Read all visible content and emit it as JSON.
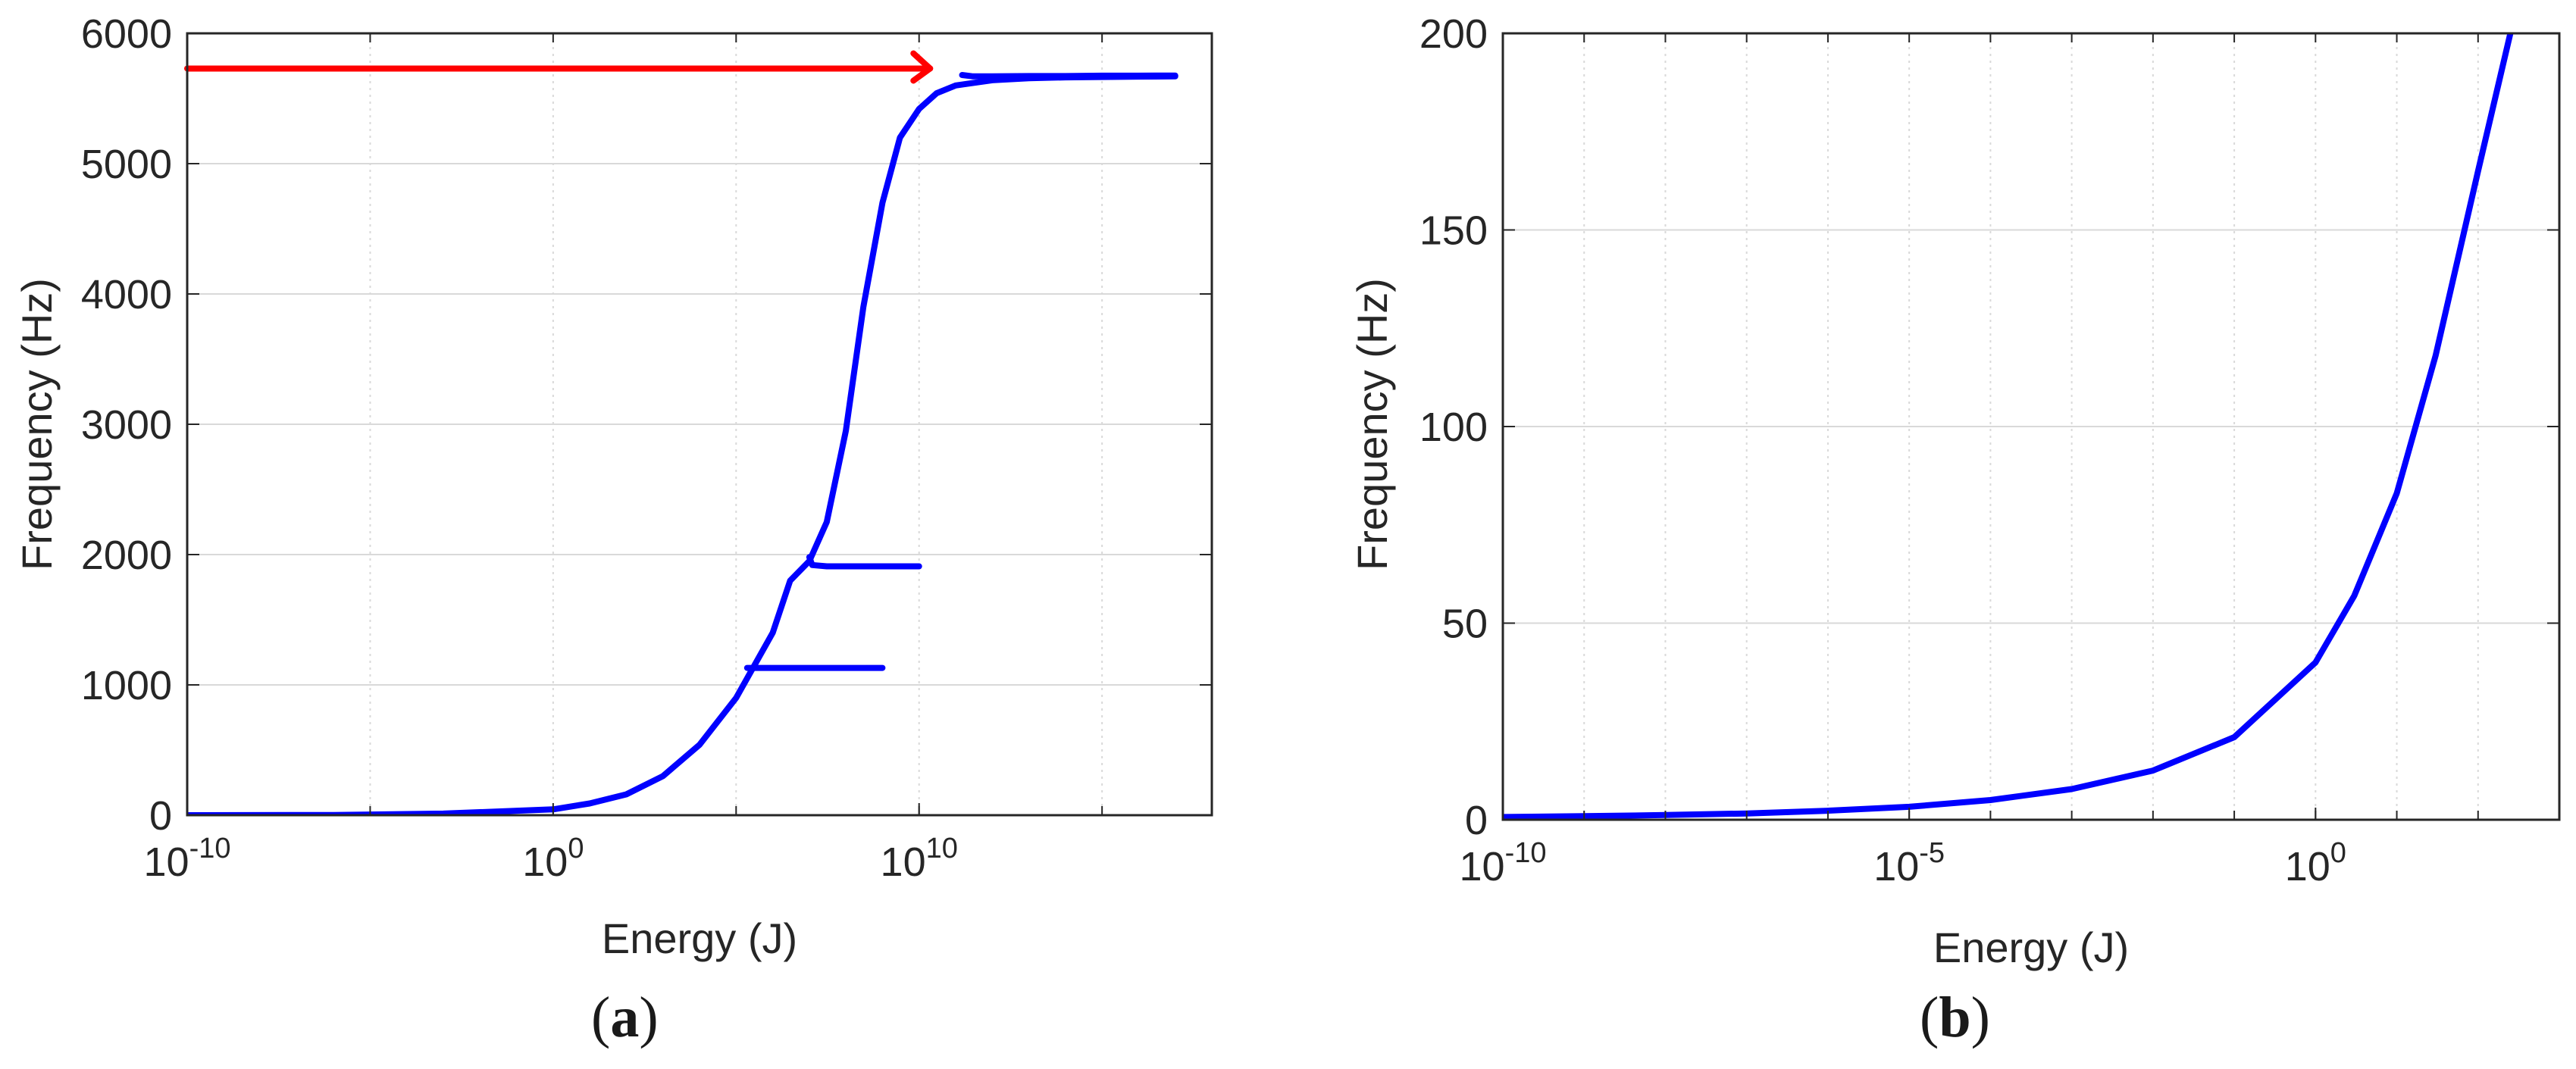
{
  "colors": {
    "curve": "#0000ff",
    "arrow": "#ff0000",
    "grid": "#d9d9d9",
    "axis": "#262626"
  },
  "captions": {
    "a": "a",
    "b": "b"
  },
  "chart_data": [
    {
      "type": "line",
      "panel": "a",
      "xlabel": "Energy (J)",
      "ylabel": "Frequency (Hz)",
      "x_scale": "log",
      "xlim": [
        1e-10,
        1e+18
      ],
      "ylim": [
        0,
        6000
      ],
      "y_ticks": [
        0,
        1000,
        2000,
        3000,
        4000,
        5000,
        6000
      ],
      "x_ticks": [
        {
          "value": 1e-10,
          "base": "10",
          "exp": "-10"
        },
        {
          "value": 1,
          "base": "10",
          "exp": "0"
        },
        {
          "value": 10000000000.0,
          "base": "10",
          "exp": "10"
        }
      ],
      "grid": true,
      "series": [
        {
          "role": "backbone",
          "x": [
            1e-10,
            1e-06,
            0.001,
            1,
            10,
            100,
            1000.0,
            10000.0,
            100000.0,
            1000000.0,
            3000000.0,
            10000000.0,
            30000000.0,
            100000000.0,
            300000000.0,
            1000000000.0,
            3000000000.0,
            10000000000.0,
            30000000000.0,
            100000000000.0,
            1000000000000.0,
            10000000000000.0,
            100000000000000.0,
            1000000000000000.0,
            1e+16,
            1e+17
          ],
          "y": [
            0,
            2,
            12,
            45,
            90,
            160,
            300,
            540,
            900,
            1400,
            1800,
            1950,
            2250,
            2950,
            3900,
            4700,
            5200,
            5420,
            5540,
            5600,
            5640,
            5655,
            5662,
            5665,
            5668,
            5670
          ]
        },
        {
          "role": "tongue",
          "x": [
            200000.0,
            300000.0,
            1000000.0,
            10000000.0,
            100000000.0,
            1000000000.0
          ],
          "y": [
            1130,
            1130,
            1130,
            1130,
            1130,
            1130
          ]
        },
        {
          "role": "tongue",
          "x": [
            10000000.0,
            12000000.0,
            30000000.0,
            100000000.0,
            1000000000.0,
            10000000000.0
          ],
          "y": [
            1980,
            1920,
            1910,
            1910,
            1910,
            1910
          ]
        },
        {
          "role": "tongue",
          "x": [
            150000000000.0,
            300000000000.0,
            1000000000000.0,
            10000000000000.0,
            100000000000000.0,
            1000000000000000.0,
            1e+16,
            1e+17
          ],
          "y": [
            5680,
            5670,
            5670,
            5672,
            5672,
            5675,
            5675,
            5676
          ]
        }
      ],
      "annotation": {
        "type": "arrow",
        "x_start": 1e-10,
        "x_end": 20000000000.0,
        "y": 5730
      }
    },
    {
      "type": "line",
      "panel": "b",
      "xlabel": "Energy (J)",
      "ylabel": "Frequency (Hz)",
      "x_scale": "log",
      "xlim": [
        1e-10,
        1000.0
      ],
      "ylim": [
        0,
        200
      ],
      "y_ticks": [
        0,
        50,
        100,
        150,
        200
      ],
      "x_ticks": [
        {
          "value": 1e-10,
          "base": "10",
          "exp": "-10"
        },
        {
          "value": 1e-05,
          "base": "10",
          "exp": "-5"
        },
        {
          "value": 1,
          "base": "10",
          "exp": "0"
        }
      ],
      "grid": true,
      "series": [
        {
          "role": "curve",
          "x": [
            1e-10,
            1e-09,
            1e-08,
            1e-07,
            1e-06,
            1e-05,
            0.0001,
            0.001,
            0.01,
            0.1,
            1,
            3,
            10,
            30,
            100,
            250
          ],
          "y": [
            0.7,
            0.9,
            1.2,
            1.6,
            2.3,
            3.3,
            5,
            7.8,
            12.5,
            21,
            40,
            57,
            83,
            118,
            165,
            200
          ]
        }
      ]
    }
  ]
}
